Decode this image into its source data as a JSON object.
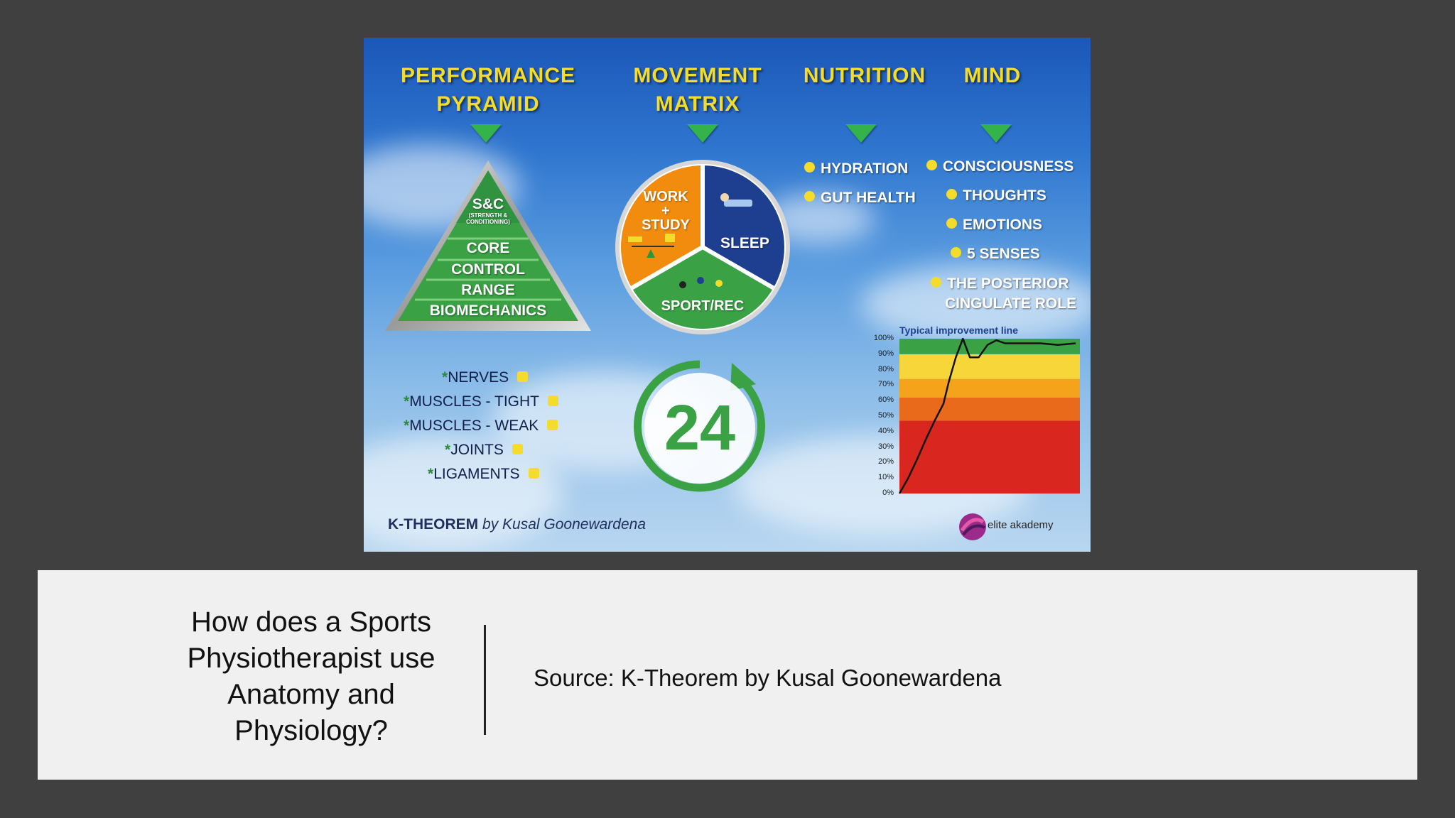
{
  "figure": {
    "headers": {
      "performance_pyramid": "PERFORMANCE\nPYRAMID",
      "movement_matrix": "MOVEMENT\nMATRIX",
      "nutrition": "NUTRITION",
      "mind": "MIND"
    },
    "pyramid": {
      "top": "S&C",
      "top_sub": "(STRENGTH &\nCONDITIONING)",
      "levels": [
        "CORE",
        "CONTROL",
        "RANGE",
        "BIOMECHANICS"
      ]
    },
    "matrix": {
      "work_study": "WORK\n+\nSTUDY",
      "sleep": "SLEEP",
      "sport_rec": "SPORT/REC",
      "clock_number": "24"
    },
    "nutrition_items": [
      "HYDRATION",
      "GUT HEALTH"
    ],
    "mind_items": [
      "CONSCIOUSNESS",
      "THOUGHTS",
      "EMOTIONS",
      "5 SENSES",
      "THE POSTERIOR",
      "CINGULATE ROLE"
    ],
    "injury_items": [
      "NERVES",
      "MUSCLES - TIGHT",
      "MUSCLES - WEAK",
      "JOINTS",
      "LIGAMENTS"
    ],
    "injury_star": "*",
    "credit_brand": "K-THEOREM",
    "credit_author": "by Kusal Goonewardena",
    "logo_text": "elite akademy",
    "colors": {
      "header_yellow": "#f4dc2c",
      "pyramid_green": "#3aa245",
      "matrix_orange": "#f28c0f",
      "matrix_navy": "#1e3f8f",
      "matrix_green": "#3aa245"
    }
  },
  "chart_data": {
    "type": "line",
    "title": "Typical improvement line",
    "ytick_labels": [
      "100%",
      "90%",
      "80%",
      "70%",
      "60%",
      "50%",
      "40%",
      "30%",
      "20%",
      "10%",
      "0%"
    ],
    "ylim": [
      0,
      100
    ],
    "bands": [
      {
        "from": 0,
        "to": 47,
        "color": "#d9261f"
      },
      {
        "from": 47,
        "to": 62,
        "color": "#ea6a1c"
      },
      {
        "from": 62,
        "to": 74,
        "color": "#f5a31a"
      },
      {
        "from": 74,
        "to": 90,
        "color": "#f7d63a"
      },
      {
        "from": 90,
        "to": 100,
        "color": "#3aa245"
      }
    ],
    "series": [
      {
        "x": [
          0,
          5,
          10,
          15,
          20,
          25,
          28,
          32,
          36,
          40,
          45,
          50,
          55,
          60,
          70,
          80,
          90,
          100
        ],
        "y": [
          0,
          10,
          22,
          35,
          47,
          58,
          72,
          88,
          100,
          88,
          88,
          96,
          99,
          97,
          97,
          97,
          96,
          97
        ]
      }
    ]
  },
  "slide": {
    "title": "How does a Sports\nPhysiotherapist use\nAnatomy and\nPhysiology?",
    "source": "Source: K-Theorem by Kusal Goonewardena"
  }
}
